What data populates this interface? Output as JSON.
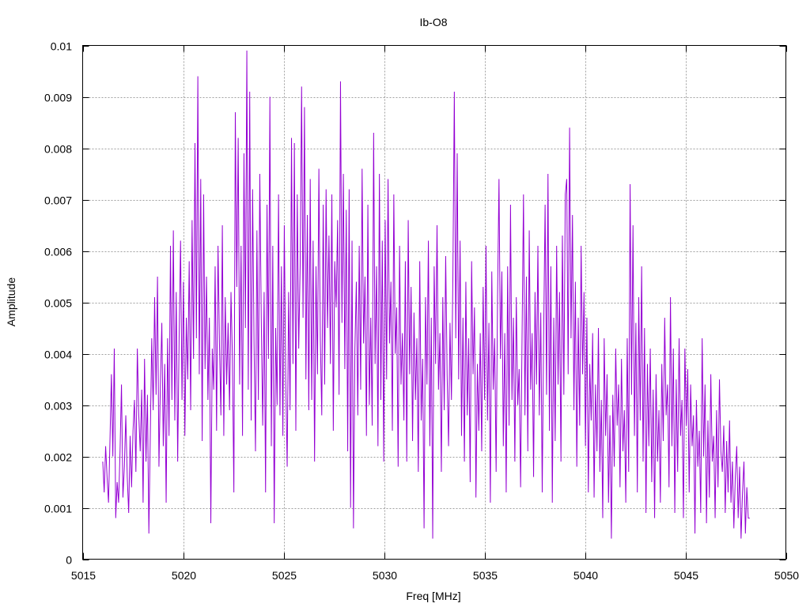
{
  "chart_data": {
    "type": "line",
    "title": "Ib-O8",
    "xlabel": "Freq [MHz]",
    "ylabel": "Amplitude",
    "xlim": [
      5015,
      5050
    ],
    "ylim": [
      0,
      0.01
    ],
    "x_ticks": [
      "5015",
      "5020",
      "5025",
      "5030",
      "5035",
      "5040",
      "5045",
      "5050"
    ],
    "y_ticks": [
      "0",
      "0.001",
      "0.002",
      "0.003",
      "0.004",
      "0.005",
      "0.006",
      "0.007",
      "0.008",
      "0.009",
      "0.01"
    ],
    "grid": true,
    "line_color": "#9400d3",
    "series": [
      {
        "x_start": 5016.0,
        "x_end": 5048.2,
        "values": [
          0.0019,
          0.0013,
          0.0022,
          0.0016,
          0.0011,
          0.0023,
          0.0036,
          0.002,
          0.0041,
          0.0008,
          0.0015,
          0.0011,
          0.0021,
          0.0034,
          0.0012,
          0.0018,
          0.0028,
          0.0016,
          0.0009,
          0.0024,
          0.0014,
          0.0025,
          0.0031,
          0.0017,
          0.0041,
          0.0028,
          0.0021,
          0.0033,
          0.0011,
          0.0039,
          0.0019,
          0.0032,
          0.0005,
          0.0024,
          0.0043,
          0.0029,
          0.0051,
          0.0032,
          0.0055,
          0.0018,
          0.0034,
          0.0046,
          0.0022,
          0.0038,
          0.0011,
          0.0043,
          0.0024,
          0.0061,
          0.0031,
          0.0064,
          0.0027,
          0.0052,
          0.0019,
          0.0043,
          0.0062,
          0.0031,
          0.0054,
          0.0024,
          0.0047,
          0.0035,
          0.0058,
          0.0029,
          0.0066,
          0.0039,
          0.0081,
          0.0043,
          0.0094,
          0.0036,
          0.0074,
          0.0023,
          0.0071,
          0.0037,
          0.0055,
          0.0031,
          0.0047,
          0.0007,
          0.0041,
          0.0033,
          0.0057,
          0.0025,
          0.0061,
          0.0042,
          0.0028,
          0.0065,
          0.0024,
          0.0051,
          0.0034,
          0.0046,
          0.0029,
          0.0052,
          0.0039,
          0.0013,
          0.0087,
          0.0053,
          0.0082,
          0.0034,
          0.0061,
          0.0024,
          0.0079,
          0.0045,
          0.0099,
          0.0033,
          0.0091,
          0.0027,
          0.0072,
          0.0042,
          0.0021,
          0.0064,
          0.0031,
          0.0075,
          0.0047,
          0.0026,
          0.0052,
          0.0013,
          0.0069,
          0.0039,
          0.009,
          0.0022,
          0.0061,
          0.0007,
          0.0045,
          0.003,
          0.0071,
          0.0028,
          0.0057,
          0.0024,
          0.0065,
          0.0035,
          0.0018,
          0.0052,
          0.0029,
          0.0082,
          0.0038,
          0.0081,
          0.0025,
          0.0071,
          0.0041,
          0.0057,
          0.0092,
          0.0047,
          0.0088,
          0.0035,
          0.0067,
          0.0029,
          0.0074,
          0.0031,
          0.0062,
          0.0019,
          0.0057,
          0.0036,
          0.0076,
          0.0043,
          0.0028,
          0.0069,
          0.0034,
          0.0072,
          0.0045,
          0.0063,
          0.0038,
          0.0071,
          0.0025,
          0.0058,
          0.0049,
          0.0066,
          0.0032,
          0.0093,
          0.0046,
          0.0075,
          0.0037,
          0.0068,
          0.0021,
          0.0072,
          0.001,
          0.0062,
          0.0006,
          0.0041,
          0.0054,
          0.0028,
          0.0061,
          0.0033,
          0.0076,
          0.0042,
          0.0055,
          0.0024,
          0.0069,
          0.003,
          0.0047,
          0.0026,
          0.0083,
          0.0038,
          0.0057,
          0.0022,
          0.0075,
          0.0031,
          0.0062,
          0.0019,
          0.0066,
          0.0035,
          0.0074,
          0.0042,
          0.0054,
          0.0025,
          0.0071,
          0.004,
          0.0049,
          0.0018,
          0.0061,
          0.0034,
          0.0044,
          0.0027,
          0.0058,
          0.0019,
          0.0066,
          0.0036,
          0.0053,
          0.0023,
          0.0048,
          0.0031,
          0.0043,
          0.0017,
          0.0058,
          0.0027,
          0.0039,
          0.0006,
          0.0051,
          0.0034,
          0.0062,
          0.0022,
          0.0047,
          0.0004,
          0.0057,
          0.0038,
          0.0065,
          0.0033,
          0.0044,
          0.0017,
          0.0051,
          0.0029,
          0.0059,
          0.0036,
          0.0022,
          0.0046,
          0.0031,
          0.0055,
          0.0091,
          0.0043,
          0.0079,
          0.0035,
          0.0062,
          0.0024,
          0.0047,
          0.0019,
          0.0054,
          0.0028,
          0.0043,
          0.0015,
          0.0058,
          0.0036,
          0.0049,
          0.0012,
          0.0038,
          0.0025,
          0.0044,
          0.0021,
          0.0053,
          0.0031,
          0.0061,
          0.0027,
          0.0046,
          0.0011,
          0.0056,
          0.0033,
          0.0043,
          0.0017,
          0.0051,
          0.0074,
          0.0039,
          0.0056,
          0.0022,
          0.0044,
          0.0013,
          0.0057,
          0.0026,
          0.0069,
          0.0031,
          0.0047,
          0.0019,
          0.0051,
          0.003,
          0.0037,
          0.0014,
          0.0043,
          0.0071,
          0.0028,
          0.0055,
          0.0021,
          0.0064,
          0.0033,
          0.0044,
          0.0016,
          0.0052,
          0.0034,
          0.0061,
          0.0028,
          0.0048,
          0.0013,
          0.0044,
          0.0069,
          0.0032,
          0.0075,
          0.0025,
          0.0057,
          0.0011,
          0.0047,
          0.0023,
          0.0061,
          0.0034,
          0.0052,
          0.0019,
          0.0063,
          0.0032,
          0.0071,
          0.0074,
          0.0036,
          0.0084,
          0.0043,
          0.0067,
          0.0029,
          0.0054,
          0.0018,
          0.0047,
          0.0026,
          0.0061,
          0.0036,
          0.0052,
          0.0022,
          0.0047,
          0.0013,
          0.0038,
          0.0027,
          0.0044,
          0.0012,
          0.0034,
          0.0021,
          0.0045,
          0.0017,
          0.0031,
          0.0008,
          0.0043,
          0.0024,
          0.0036,
          0.0011,
          0.0028,
          0.0004,
          0.0032,
          0.0018,
          0.0041,
          0.0026,
          0.0034,
          0.0014,
          0.0039,
          0.0021,
          0.0029,
          0.0011,
          0.0043,
          0.0017,
          0.0073,
          0.0032,
          0.0065,
          0.0024,
          0.0046,
          0.0013,
          0.0051,
          0.0027,
          0.0057,
          0.0019,
          0.0045,
          0.0009,
          0.0038,
          0.0022,
          0.0041,
          0.0015,
          0.0033,
          0.0008,
          0.0036,
          0.0019,
          0.0029,
          0.0011,
          0.0038,
          0.0023,
          0.0047,
          0.0028,
          0.0034,
          0.0014,
          0.0051,
          0.0022,
          0.0041,
          0.0009,
          0.0035,
          0.0017,
          0.0043,
          0.0024,
          0.0031,
          0.0008,
          0.0041,
          0.0026,
          0.0037,
          0.0013,
          0.0034,
          0.0022,
          0.0028,
          0.0005,
          0.0031,
          0.0018,
          0.0025,
          0.0009,
          0.0043,
          0.002,
          0.0034,
          0.0007,
          0.0027,
          0.0012,
          0.0036,
          0.0019,
          0.0024,
          0.0008,
          0.0029,
          0.0014,
          0.0035,
          0.0021,
          0.0017,
          0.0026,
          0.0009,
          0.0023,
          0.0013,
          0.0027,
          0.0011,
          0.0019,
          0.0006,
          0.0016,
          0.0022,
          0.0008,
          0.0018,
          0.0004,
          0.0013,
          0.0019,
          0.0005,
          0.0014,
          0.0008,
          0.0008
        ]
      }
    ]
  }
}
